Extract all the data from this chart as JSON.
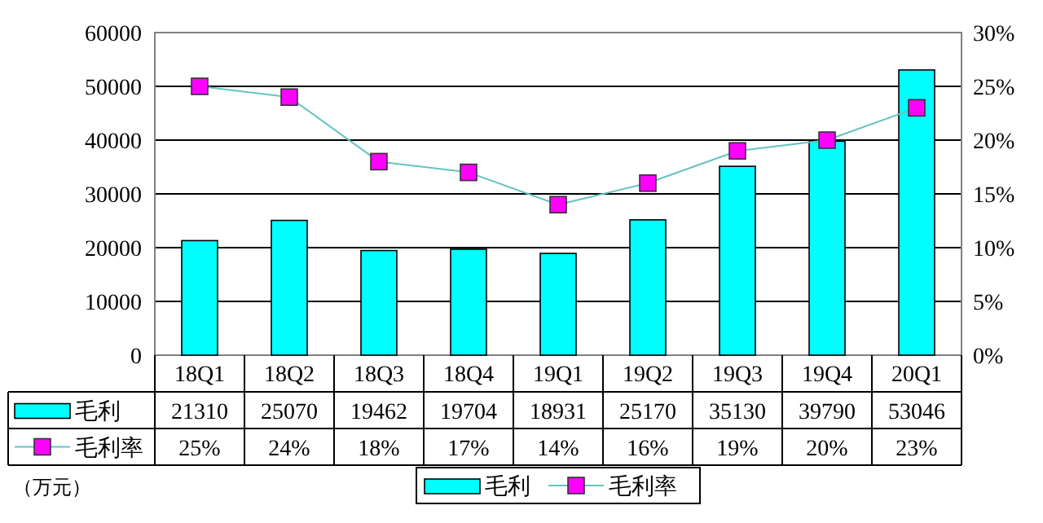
{
  "chart_data": {
    "type": "bar",
    "categories": [
      "18Q1",
      "18Q2",
      "18Q3",
      "18Q4",
      "19Q1",
      "19Q2",
      "19Q3",
      "19Q4",
      "20Q1"
    ],
    "series": [
      {
        "name": "毛利",
        "color": "#00ffff",
        "values": [
          21310,
          25070,
          19462,
          19704,
          18931,
          25170,
          35130,
          39790,
          53046
        ],
        "value_labels": [
          "21310",
          "25070",
          "19462",
          "19704",
          "18931",
          "25170",
          "35130",
          "39790",
          "53046"
        ]
      },
      {
        "name": "毛利率",
        "type": "line",
        "axis": "y2",
        "color": "#ff00ff",
        "values": [
          25,
          24,
          18,
          17,
          14,
          16,
          19,
          20,
          23
        ],
        "value_labels": [
          "25%",
          "24%",
          "18%",
          "17%",
          "14%",
          "16%",
          "19%",
          "20%",
          "23%"
        ]
      }
    ],
    "ylim": [
      0,
      60000
    ],
    "yticks": [
      0,
      10000,
      20000,
      30000,
      40000,
      50000,
      60000
    ],
    "y2lim": [
      0,
      30
    ],
    "y2ticks": [
      {
        "value": 0,
        "label": "0%"
      },
      {
        "value": 5,
        "label": "5%"
      },
      {
        "value": 10,
        "label": "10%"
      },
      {
        "value": 15,
        "label": "15%"
      },
      {
        "value": 20,
        "label": "20%"
      },
      {
        "value": 25,
        "label": "25%"
      },
      {
        "value": 30,
        "label": "30%"
      }
    ],
    "grid": "y",
    "legend": "bottom",
    "marker": "square",
    "annotations": [
      "（万元）"
    ]
  }
}
